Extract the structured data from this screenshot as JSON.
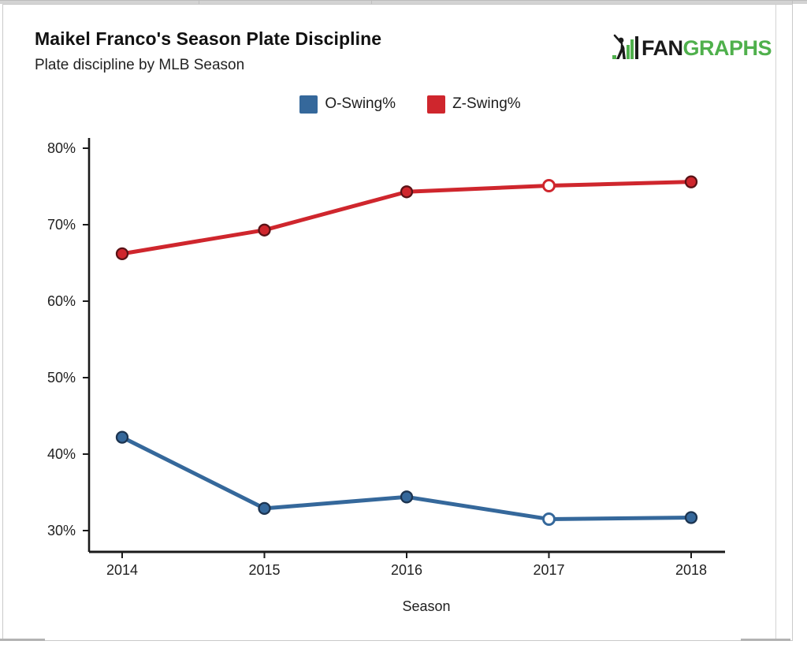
{
  "page": {
    "title": "Maikel Franco's Season Plate Discipline",
    "subtitle": "Plate discipline by MLB Season"
  },
  "logo": {
    "brand_black": "FAN",
    "brand_green": "GRAPHS",
    "green_color": "#4fb04c",
    "black_color": "#1a1a1a"
  },
  "chart_data": {
    "type": "line",
    "title": "Maikel Franco's Season Plate Discipline",
    "subtitle": "Plate discipline by MLB Season",
    "xlabel": "Season",
    "x": [
      "2014",
      "2015",
      "2016",
      "2017",
      "2018"
    ],
    "ytick_labels": [
      "80%",
      "70%",
      "60%",
      "50%",
      "40%",
      "30%"
    ],
    "ytick_values": [
      80,
      70,
      60,
      50,
      40,
      30
    ],
    "ylim": [
      27,
      81.5
    ],
    "grid": false,
    "legend_position": "top-center",
    "hollow_marker_x": "2017",
    "axis_color": "#1a1a1a",
    "text_color": "#1f1f1f",
    "series": [
      {
        "name": "O-Swing%",
        "color": "#35689b",
        "marker_outline": "#1c3450",
        "values": [
          42.2,
          32.9,
          34.4,
          31.5,
          31.7
        ]
      },
      {
        "name": "Z-Swing%",
        "color": "#cf262d",
        "marker_outline": "#5a1216",
        "values": [
          66.2,
          69.3,
          74.3,
          75.1,
          75.6
        ]
      }
    ]
  }
}
